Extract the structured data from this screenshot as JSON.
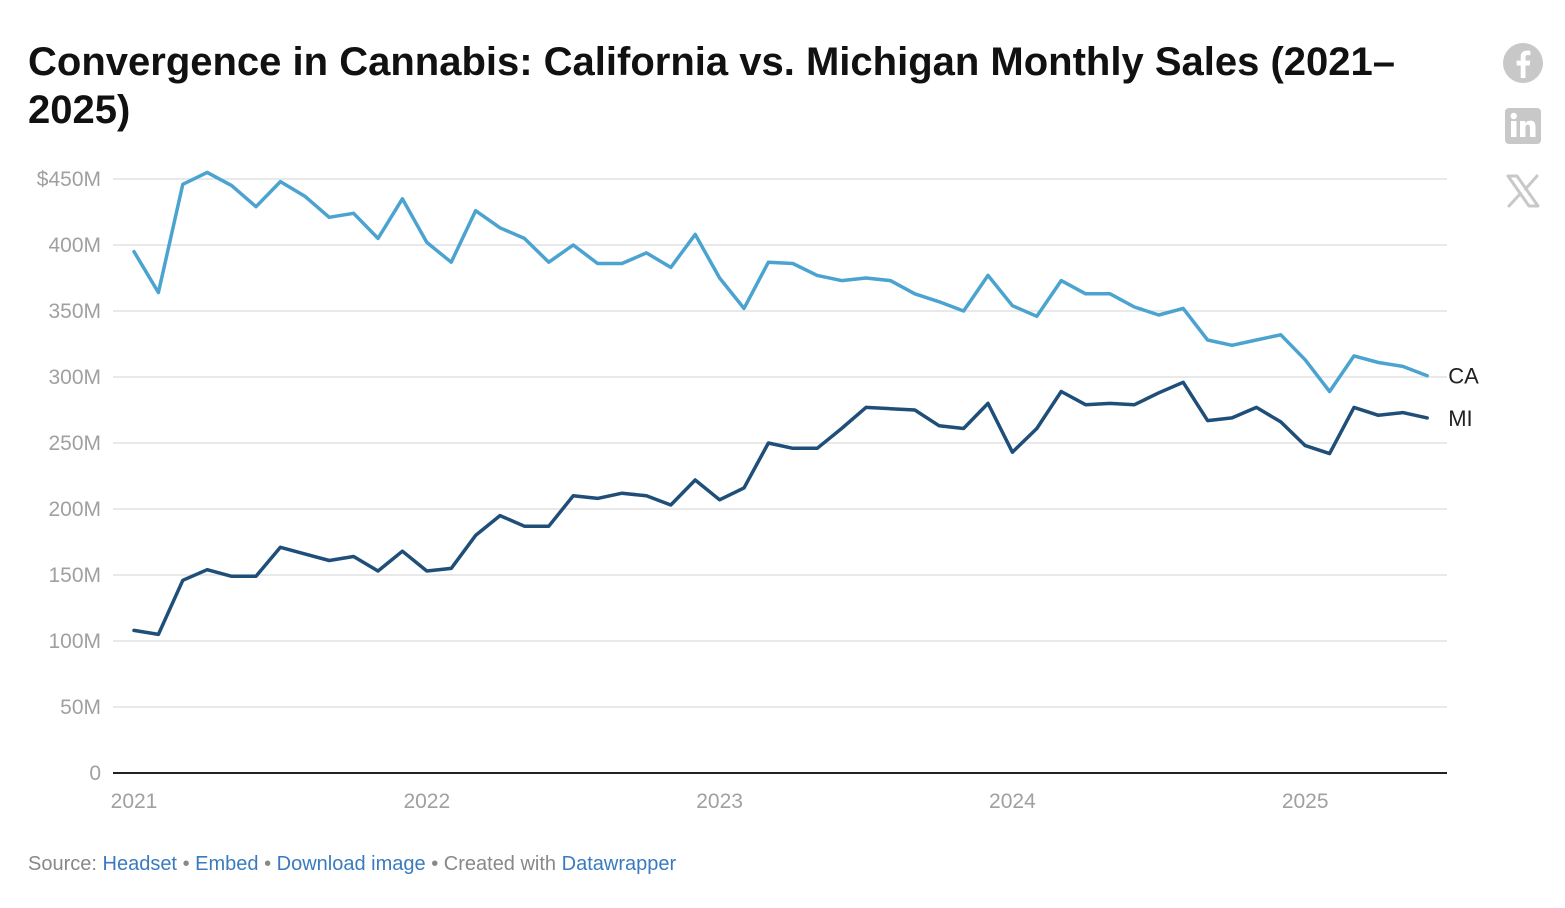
{
  "header": {
    "title": "Convergence in Cannabis: California vs. Michigan Monthly Sales (2021–2025)"
  },
  "share": {
    "facebook_icon": "facebook-icon",
    "linkedin_icon": "linkedin-icon",
    "x_icon": "x-icon"
  },
  "footer": {
    "source_prefix": "Source:",
    "source_link": "Headset",
    "sep1": "•",
    "embed": "Embed",
    "sep2": "•",
    "download": "Download image",
    "sep3": "•",
    "created_with": "Created with",
    "datawrapper": "Datawrapper"
  },
  "chart_data": {
    "type": "line",
    "title": "Convergence in Cannabis: California vs. Michigan Monthly Sales (2021–2025)",
    "xlabel": "",
    "ylabel": "",
    "x_start": "2021-01",
    "x_ticks": [
      "2021",
      "2022",
      "2023",
      "2024",
      "2025"
    ],
    "y_ticks": [
      "0",
      "50M",
      "100M",
      "150M",
      "200M",
      "250M",
      "300M",
      "350M",
      "400M",
      "$450M"
    ],
    "ylim": [
      0,
      450
    ],
    "unit": "M USD",
    "grid": true,
    "colors": {
      "CA": "#4ba3d0",
      "MI": "#1f4e79",
      "grid": "#e2e2e2",
      "axis": "#222222",
      "tick": "#a0a0a0"
    },
    "series": [
      {
        "name": "CA",
        "values": [
          395,
          364,
          446,
          455,
          445,
          429,
          448,
          437,
          421,
          424,
          405,
          435,
          402,
          387,
          426,
          413,
          405,
          387,
          400,
          386,
          386,
          394,
          383,
          408,
          375,
          352,
          387,
          386,
          377,
          373,
          375,
          373,
          363,
          357,
          350,
          377,
          354,
          346,
          373,
          363,
          363,
          353,
          347,
          352,
          328,
          324,
          328,
          332,
          313,
          289,
          316,
          311,
          308,
          301
        ]
      },
      {
        "name": "MI",
        "values": [
          108,
          105,
          146,
          154,
          149,
          149,
          171,
          166,
          161,
          164,
          153,
          168,
          153,
          155,
          180,
          195,
          187,
          187,
          210,
          208,
          212,
          210,
          203,
          222,
          207,
          216,
          250,
          246,
          246,
          261,
          277,
          276,
          275,
          263,
          261,
          280,
          243,
          261,
          289,
          279,
          280,
          279,
          288,
          296,
          267,
          269,
          277,
          266,
          248,
          242,
          277,
          271,
          273,
          269
        ]
      }
    ]
  }
}
